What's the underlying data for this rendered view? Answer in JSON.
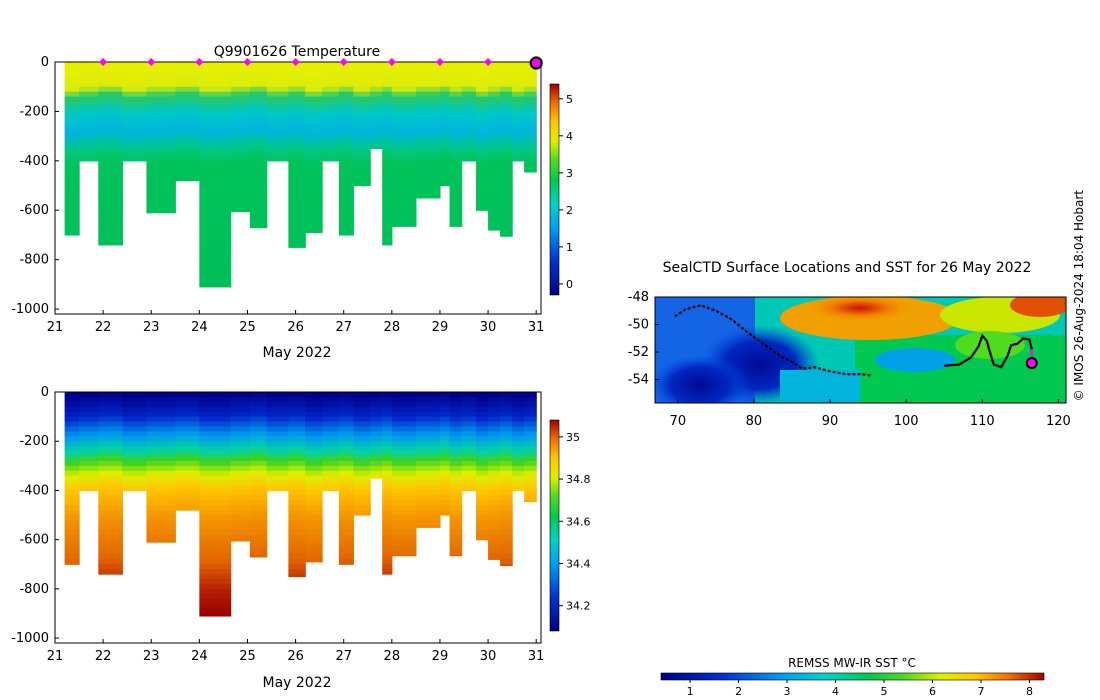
{
  "figure": {
    "credit": "© IMOS 26-Aug-2024 18:04 Hobart"
  },
  "chart_data": [
    {
      "type": "heatmap",
      "title": "Q9901626  Temperature",
      "xlabel": "May 2022",
      "ylabel": "",
      "xlim": [
        21,
        31.1
      ],
      "ylim": [
        -1020,
        0
      ],
      "x_ticks": [
        "21",
        "22",
        "23",
        "24",
        "25",
        "26",
        "27",
        "28",
        "29",
        "30",
        "31"
      ],
      "y_ticks": [
        "0",
        "-200",
        "-400",
        "-600",
        "-800",
        "-1000"
      ],
      "grid": false,
      "colorbar": {
        "min": -0.3,
        "max": 5.4,
        "ticks": [
          "0",
          "1",
          "2",
          "3",
          "4",
          "5"
        ]
      },
      "surface_markers_x": [
        22,
        23,
        24,
        25,
        26,
        27,
        28,
        29,
        30
      ],
      "latest_marker_x": 31,
      "profiles": [
        {
          "x0": 21.2,
          "x1": 21.5,
          "maxdepth": 700
        },
        {
          "x0": 21.5,
          "x1": 21.9,
          "maxdepth": 400
        },
        {
          "x0": 21.9,
          "x1": 22.4,
          "maxdepth": 740
        },
        {
          "x0": 22.4,
          "x1": 22.9,
          "maxdepth": 400
        },
        {
          "x0": 22.9,
          "x1": 23.5,
          "maxdepth": 610
        },
        {
          "x0": 23.5,
          "x1": 24.0,
          "maxdepth": 480
        },
        {
          "x0": 24.0,
          "x1": 24.65,
          "maxdepth": 910
        },
        {
          "x0": 24.65,
          "x1": 25.05,
          "maxdepth": 605
        },
        {
          "x0": 25.05,
          "x1": 25.4,
          "maxdepth": 670
        },
        {
          "x0": 25.4,
          "x1": 25.85,
          "maxdepth": 400
        },
        {
          "x0": 25.85,
          "x1": 26.2,
          "maxdepth": 750
        },
        {
          "x0": 26.2,
          "x1": 26.55,
          "maxdepth": 690
        },
        {
          "x0": 26.55,
          "x1": 26.9,
          "maxdepth": 400
        },
        {
          "x0": 26.9,
          "x1": 27.2,
          "maxdepth": 700
        },
        {
          "x0": 27.2,
          "x1": 27.55,
          "maxdepth": 500
        },
        {
          "x0": 27.55,
          "x1": 27.8,
          "maxdepth": 350
        },
        {
          "x0": 27.8,
          "x1": 28.0,
          "maxdepth": 740
        },
        {
          "x0": 28.0,
          "x1": 28.5,
          "maxdepth": 665
        },
        {
          "x0": 28.5,
          "x1": 29.0,
          "maxdepth": 550
        },
        {
          "x0": 29.0,
          "x1": 29.2,
          "maxdepth": 500
        },
        {
          "x0": 29.2,
          "x1": 29.45,
          "maxdepth": 665
        },
        {
          "x0": 29.45,
          "x1": 29.75,
          "maxdepth": 400
        },
        {
          "x0": 29.75,
          "x1": 30.0,
          "maxdepth": 600
        },
        {
          "x0": 30.0,
          "x1": 30.25,
          "maxdepth": 680
        },
        {
          "x0": 30.25,
          "x1": 30.5,
          "maxdepth": 705
        },
        {
          "x0": 30.5,
          "x1": 30.75,
          "maxdepth": 400
        },
        {
          "x0": 30.75,
          "x1": 31.0,
          "maxdepth": 445
        }
      ]
    },
    {
      "type": "heatmap",
      "title": "",
      "xlabel": "May 2022",
      "ylabel": "",
      "xlim": [
        21,
        31.1
      ],
      "ylim": [
        -1020,
        0
      ],
      "x_ticks": [
        "21",
        "22",
        "23",
        "24",
        "25",
        "26",
        "27",
        "28",
        "29",
        "30",
        "31"
      ],
      "y_ticks": [
        "0",
        "-200",
        "-400",
        "-600",
        "-800",
        "-1000"
      ],
      "grid": false,
      "colorbar": {
        "min": 34.08,
        "max": 35.08,
        "ticks": [
          "34.2",
          "34.4",
          "34.6",
          "34.8",
          "35"
        ]
      }
    },
    {
      "type": "heatmap",
      "title": "SealCTD Surface Locations and SST for 26 May 2022",
      "xlim": [
        67,
        121
      ],
      "ylim": [
        -55.7,
        -48
      ],
      "x_ticks": [
        "70",
        "80",
        "90",
        "100",
        "110",
        "120"
      ],
      "y_ticks": [
        "-48",
        "-50",
        "-52",
        "-54"
      ],
      "grid": false,
      "colorbar": {
        "label": "REMSS MW-IR SST °C",
        "min": 0.4,
        "max": 8.3,
        "ticks": [
          "1",
          "2",
          "3",
          "4",
          "5",
          "6",
          "7",
          "8"
        ]
      },
      "track": [
        [
          69.6,
          -49.4
        ],
        [
          71,
          -48.9
        ],
        [
          73,
          -48.6
        ],
        [
          75,
          -49
        ],
        [
          77,
          -49.6
        ],
        [
          79,
          -50.5
        ],
        [
          80.5,
          -51.1
        ],
        [
          82,
          -51.7
        ],
        [
          83.5,
          -52.3
        ],
        [
          85,
          -52.7
        ],
        [
          86.3,
          -53.2
        ],
        [
          88,
          -53.1
        ],
        [
          90,
          -53.4
        ],
        [
          92,
          -53.6
        ],
        [
          94,
          -53.6
        ],
        [
          95.5,
          -53.7
        ]
      ],
      "track2": [
        [
          105,
          -53
        ],
        [
          107,
          -52.9
        ],
        [
          108.5,
          -52.4
        ],
        [
          109.5,
          -51.6
        ],
        [
          110,
          -50.8
        ],
        [
          110.6,
          -51.2
        ],
        [
          111,
          -52
        ],
        [
          111.5,
          -52.9
        ],
        [
          112.5,
          -53.1
        ],
        [
          113.3,
          -52.3
        ],
        [
          113.8,
          -51.5
        ],
        [
          114.6,
          -51.4
        ],
        [
          115.4,
          -51
        ],
        [
          116.2,
          -51.1
        ],
        [
          116.5,
          -51.8
        ]
      ],
      "latest_position": [
        116.5,
        -52.8
      ]
    }
  ]
}
